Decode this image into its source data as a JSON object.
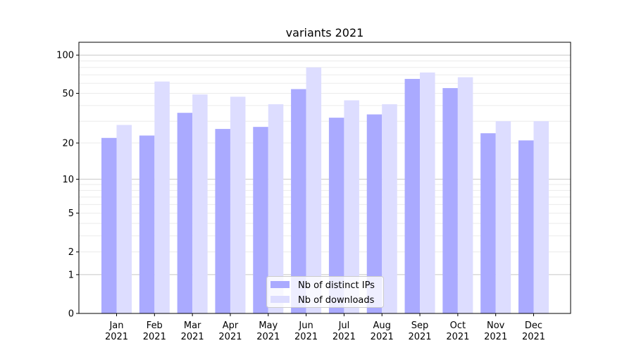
{
  "chart_data": {
    "type": "bar",
    "title": "variants 2021",
    "xlabel": "",
    "ylabel": "",
    "yscale": "symlog",
    "ylim": [
      0,
      126
    ],
    "yticks": [
      0,
      1,
      2,
      5,
      10,
      20,
      50,
      100
    ],
    "grid": true,
    "legend_position": "lower center",
    "categories": [
      "Jan\n2021",
      "Feb\n2021",
      "Mar\n2021",
      "Apr\n2021",
      "May\n2021",
      "Jun\n2021",
      "Jul\n2021",
      "Aug\n2021",
      "Sep\n2021",
      "Oct\n2021",
      "Nov\n2021",
      "Dec\n2021"
    ],
    "series": [
      {
        "name": "Nb of distinct IPs",
        "color": "#aaaaff",
        "values": [
          22,
          23,
          35,
          26,
          27,
          54,
          32,
          34,
          65,
          55,
          24,
          21
        ]
      },
      {
        "name": "Nb of downloads",
        "color": "#ddddff",
        "values": [
          28,
          62,
          49,
          47,
          41,
          80,
          44,
          41,
          73,
          67,
          30,
          30
        ]
      }
    ]
  }
}
